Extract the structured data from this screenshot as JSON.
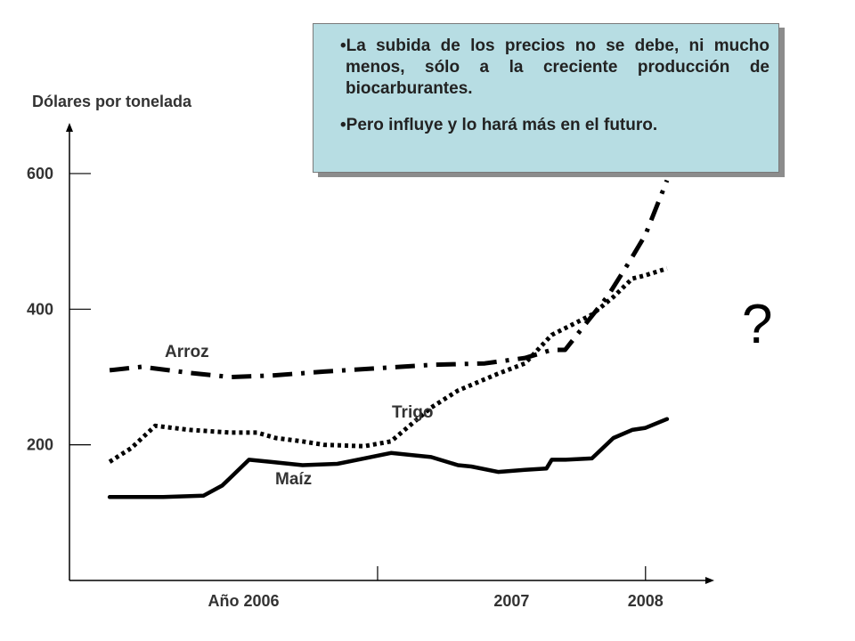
{
  "chart_data": {
    "type": "line",
    "ylabel": "Dólares por tonelada",
    "xlabel": "",
    "y_ticks": [
      200,
      400,
      600
    ],
    "ylim": [
      0,
      680
    ],
    "x_ticks": [
      "Año 2006",
      "2007",
      "2008"
    ],
    "xlim": [
      2005.85,
      2008.25
    ],
    "grid": false,
    "legend": "labels placed near lines",
    "series": [
      {
        "name": "Arroz",
        "style": "dash-dot",
        "color": "#000000",
        "x": [
          2006.0,
          2006.12,
          2006.3,
          2006.45,
          2006.6,
          2006.8,
          2007.0,
          2007.2,
          2007.4,
          2007.55,
          2007.65,
          2007.7,
          2007.78,
          2007.86,
          2007.94,
          2008.0,
          2008.08
        ],
        "y": [
          310,
          315,
          306,
          300,
          302,
          308,
          313,
          318,
          320,
          328,
          340,
          340,
          380,
          420,
          470,
          510,
          590
        ]
      },
      {
        "name": "Trigo",
        "style": "dotted",
        "color": "#000000",
        "x": [
          2006.0,
          2006.08,
          2006.17,
          2006.3,
          2006.45,
          2006.55,
          2006.62,
          2006.72,
          2006.8,
          2006.95,
          2007.05,
          2007.2,
          2007.3,
          2007.45,
          2007.55,
          2007.65,
          2007.73,
          2007.8,
          2007.88,
          2007.95,
          2008.0,
          2008.08
        ],
        "y": [
          175,
          195,
          228,
          222,
          218,
          218,
          210,
          205,
          200,
          198,
          205,
          255,
          280,
          305,
          320,
          362,
          378,
          392,
          418,
          445,
          450,
          460
        ]
      },
      {
        "name": "Maíz",
        "style": "solid",
        "color": "#000000",
        "x": [
          2006.0,
          2006.2,
          2006.35,
          2006.42,
          2006.52,
          2006.6,
          2006.72,
          2006.85,
          2006.95,
          2007.05,
          2007.2,
          2007.3,
          2007.35,
          2007.45,
          2007.55,
          2007.63,
          2007.65,
          2007.7,
          2007.8,
          2007.88,
          2007.95,
          2008.0,
          2008.08
        ],
        "y": [
          123,
          123,
          125,
          140,
          178,
          175,
          170,
          172,
          180,
          188,
          182,
          170,
          168,
          160,
          163,
          165,
          178,
          178,
          180,
          210,
          222,
          225,
          238
        ]
      }
    ]
  },
  "labels": {
    "ylabel": "Dólares por tonelada",
    "series": {
      "arroz": "Arroz",
      "trigo": "Trigo",
      "maiz": "Maíz"
    },
    "question_mark": "?"
  },
  "note": {
    "bullets": [
      "La subida de los precios no se debe, ni mucho menos, sólo a la creciente producción de biocarburantes.",
      "Pero influye y lo hará más en el futuro."
    ],
    "background": "#b7dde3"
  },
  "colors": {
    "text": "#333333",
    "axis": "#000000",
    "note_box": "#b7dde3"
  }
}
